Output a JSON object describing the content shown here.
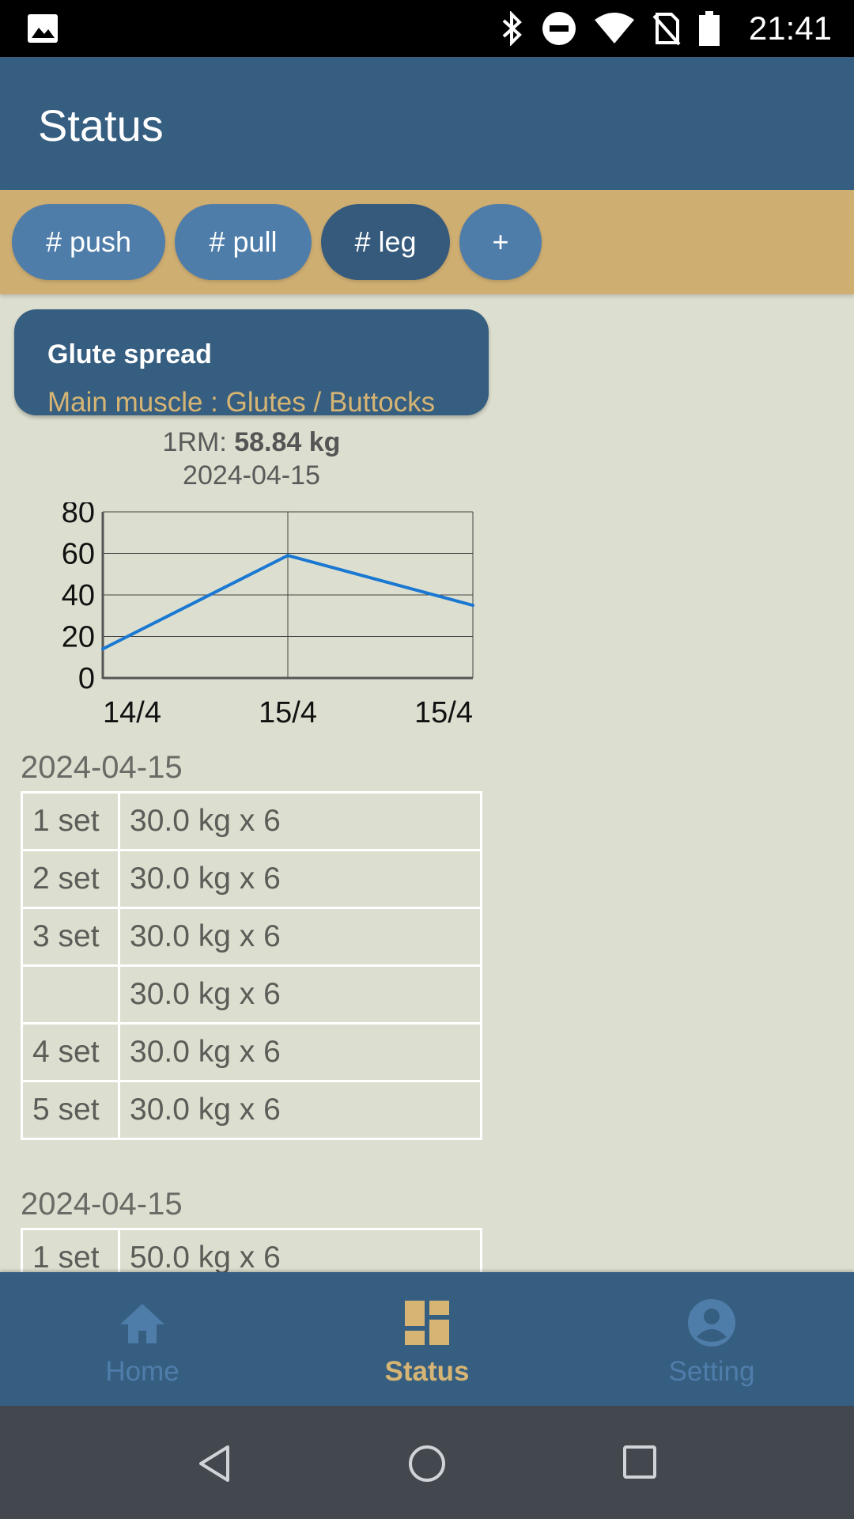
{
  "status_bar": {
    "time": "21:41"
  },
  "app_bar": {
    "title": "Status"
  },
  "tags": [
    {
      "label": "# push",
      "active": false
    },
    {
      "label": "# pull",
      "active": false
    },
    {
      "label": "# leg",
      "active": true
    },
    {
      "label": "+",
      "active": false
    }
  ],
  "exercise": {
    "name": "Glute spread",
    "main_muscle": "Main muscle : Glutes / Buttocks",
    "one_rm_prefix": "1RM: ",
    "one_rm_value": "58.84 kg",
    "one_rm_date": "2024-04-15"
  },
  "chart_data": {
    "type": "line",
    "categories": [
      "14/4",
      "15/4",
      "15/4"
    ],
    "values": [
      14,
      59,
      35
    ],
    "ylim": [
      0,
      80
    ],
    "yticks": [
      "80",
      "60",
      "40",
      "20",
      "0"
    ],
    "grid": true,
    "color": "#1a78d2"
  },
  "sessions": [
    {
      "date": "2024-04-15",
      "rows": [
        {
          "set": "1 set",
          "value": "30.0 kg x 6"
        },
        {
          "set": "2 set",
          "value": "30.0 kg x 6"
        },
        {
          "set": "3 set",
          "value": "30.0 kg x 6"
        },
        {
          "set": "",
          "value": "30.0 kg x 6"
        },
        {
          "set": "4 set",
          "value": "30.0 kg x 6"
        },
        {
          "set": "5 set",
          "value": "30.0 kg x 6"
        }
      ]
    },
    {
      "date": "2024-04-15",
      "rows": [
        {
          "set": "1 set",
          "value": "50.0 kg x 6"
        }
      ]
    }
  ],
  "bottom_nav": {
    "home": "Home",
    "status": "Status",
    "setting": "Setting"
  },
  "colors": {
    "primary": "#365e80",
    "accent": "#d6b574",
    "tag_bar": "#cfae72",
    "background": "#dcdfcf"
  }
}
